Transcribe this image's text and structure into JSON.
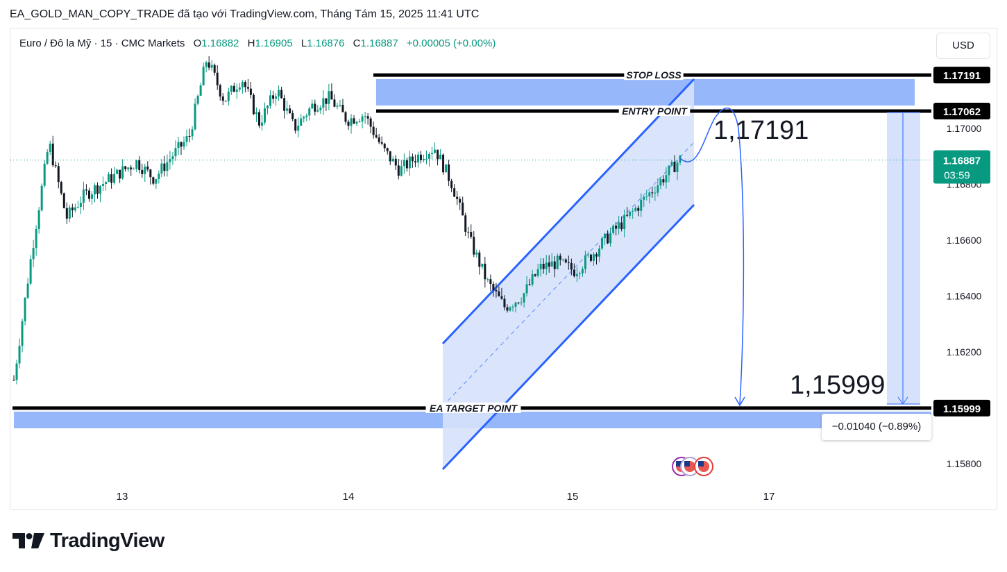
{
  "header": {
    "title": "EA_GOLD_MAN_COPY_TRADE đã tạo với TradingView.com, Tháng Tám 15, 2025 11:41 UTC"
  },
  "legend": {
    "symbol": "Euro / Đô la Mỹ · 15 · CMC Markets",
    "open_label": "O",
    "open": "1.16882",
    "high_label": "H",
    "high": "1.16905",
    "low_label": "L",
    "low": "1.16876",
    "close_label": "C",
    "close": "1.16887",
    "change": "+0.00005 (+0.00%)"
  },
  "toolbar": {
    "currency_label": "USD"
  },
  "logo": {
    "text": "TradingView"
  },
  "measure": {
    "label": "−0.01040 (−0.89%)"
  },
  "colors": {
    "up": "#089981",
    "down": "#131722",
    "accent": "#2962ff",
    "zone": "#90b4fb",
    "channel_fill": "#d6e2fc",
    "price_tag": "#089981"
  },
  "chart_data": {
    "type": "candlestick",
    "instrument": "Euro / Đô la Mỹ",
    "timeframe": "15",
    "x_ticks": [
      "13",
      "14",
      "15",
      "17"
    ],
    "y_ticks": [
      "1.17000",
      "1.16800",
      "1.16600",
      "1.16400",
      "1.16200",
      "1.15800"
    ],
    "ylim": [
      1.1572,
      1.1735
    ],
    "last_price": {
      "value": 1.16887,
      "label": "1.16887",
      "countdown": "03:59"
    },
    "levels": [
      {
        "name": "STOP LOSS",
        "value": 1.17191,
        "label": "1.17191"
      },
      {
        "name": "ENTRY POINT",
        "value": 1.17062,
        "label": "1.17062"
      },
      {
        "name": "EA TARGET POINT",
        "value": 1.15999,
        "label": "1.15999"
      }
    ],
    "annotations": [
      "1,17191",
      "1,15999"
    ],
    "price_path": [
      [
        "13",
        1.161
      ],
      [
        "13",
        1.1655
      ],
      [
        "13",
        1.1695
      ],
      [
        "13",
        1.1668
      ],
      [
        "13",
        1.1676
      ],
      [
        "13",
        1.168
      ],
      [
        "13",
        1.1684
      ],
      [
        "13",
        1.1688
      ],
      [
        "13",
        1.1682
      ],
      [
        "13",
        1.169
      ],
      [
        "13",
        1.1697
      ],
      [
        "13",
        1.1725
      ],
      [
        "13",
        1.171
      ],
      [
        "13",
        1.1718
      ],
      [
        "13",
        1.1702
      ],
      [
        "14",
        1.1714
      ],
      [
        "14",
        1.17
      ],
      [
        "14",
        1.1708
      ],
      [
        "14",
        1.1711
      ],
      [
        "14",
        1.1703
      ],
      [
        "14",
        1.1705
      ],
      [
        "14",
        1.1693
      ],
      [
        "14",
        1.1685
      ],
      [
        "14",
        1.169
      ],
      [
        "14",
        1.1693
      ],
      [
        "14",
        1.168
      ],
      [
        "14",
        1.166
      ],
      [
        "14",
        1.1645
      ],
      [
        "14",
        1.1636
      ],
      [
        "14",
        1.164
      ],
      [
        "15",
        1.165
      ],
      [
        "15",
        1.1652
      ],
      [
        "15",
        1.1649
      ],
      [
        "15",
        1.1655
      ],
      [
        "15",
        1.1662
      ],
      [
        "15",
        1.1668
      ],
      [
        "15",
        1.1675
      ],
      [
        "15",
        1.1682
      ],
      [
        "15",
        1.1689
      ]
    ]
  }
}
